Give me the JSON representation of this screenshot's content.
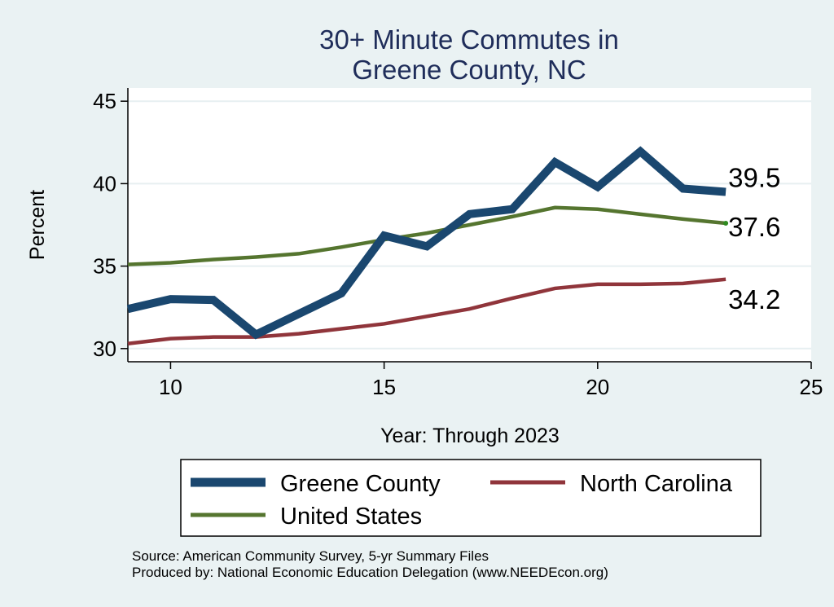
{
  "chart_data": {
    "type": "line",
    "title": [
      "30+ Minute Commutes in",
      "Greene County, NC"
    ],
    "xlabel": "Year: Through 2023",
    "ylabel": "Percent",
    "xlim": [
      9,
      25
    ],
    "ylim": [
      29.2,
      45.8
    ],
    "xticks": [
      10,
      15,
      20,
      25
    ],
    "yticks": [
      30,
      35,
      40,
      45
    ],
    "grid": true,
    "series": [
      {
        "name": "Greene County",
        "color": "#1a476f",
        "x": [
          9,
          10,
          11,
          12,
          13,
          14,
          15,
          16,
          17,
          18,
          19,
          20,
          21,
          22,
          23
        ],
        "values": [
          32.4,
          33.0,
          32.95,
          30.85,
          32.1,
          33.35,
          36.85,
          36.2,
          38.15,
          38.45,
          41.3,
          39.8,
          41.95,
          39.7,
          39.5
        ],
        "end_label": "39.5"
      },
      {
        "name": "North Carolina",
        "color": "#90353b",
        "x": [
          9,
          10,
          11,
          12,
          13,
          14,
          15,
          16,
          17,
          18,
          19,
          20,
          21,
          22,
          23
        ],
        "values": [
          30.3,
          30.6,
          30.7,
          30.7,
          30.9,
          31.2,
          31.5,
          31.95,
          32.4,
          33.05,
          33.65,
          33.9,
          33.9,
          33.95,
          34.2
        ],
        "end_label": "34.2"
      },
      {
        "name": "United States",
        "color": "#55752f",
        "x": [
          9,
          10,
          11,
          12,
          13,
          14,
          15,
          16,
          17,
          18,
          19,
          20,
          21,
          22,
          23
        ],
        "values": [
          35.1,
          35.2,
          35.4,
          35.55,
          35.75,
          36.15,
          36.6,
          37.0,
          37.5,
          38.0,
          38.55,
          38.45,
          38.15,
          37.85,
          37.6
        ],
        "end_label": "37.6"
      }
    ],
    "legend": {
      "placement": "bottom",
      "entries": [
        "Greene County",
        "North Carolina",
        "United States"
      ]
    },
    "notes": [
      "Source: American Community Survey, 5-yr Summary Files",
      "Produced by: National Economic Education Delegation (www.NEEDEcon.org)"
    ]
  }
}
